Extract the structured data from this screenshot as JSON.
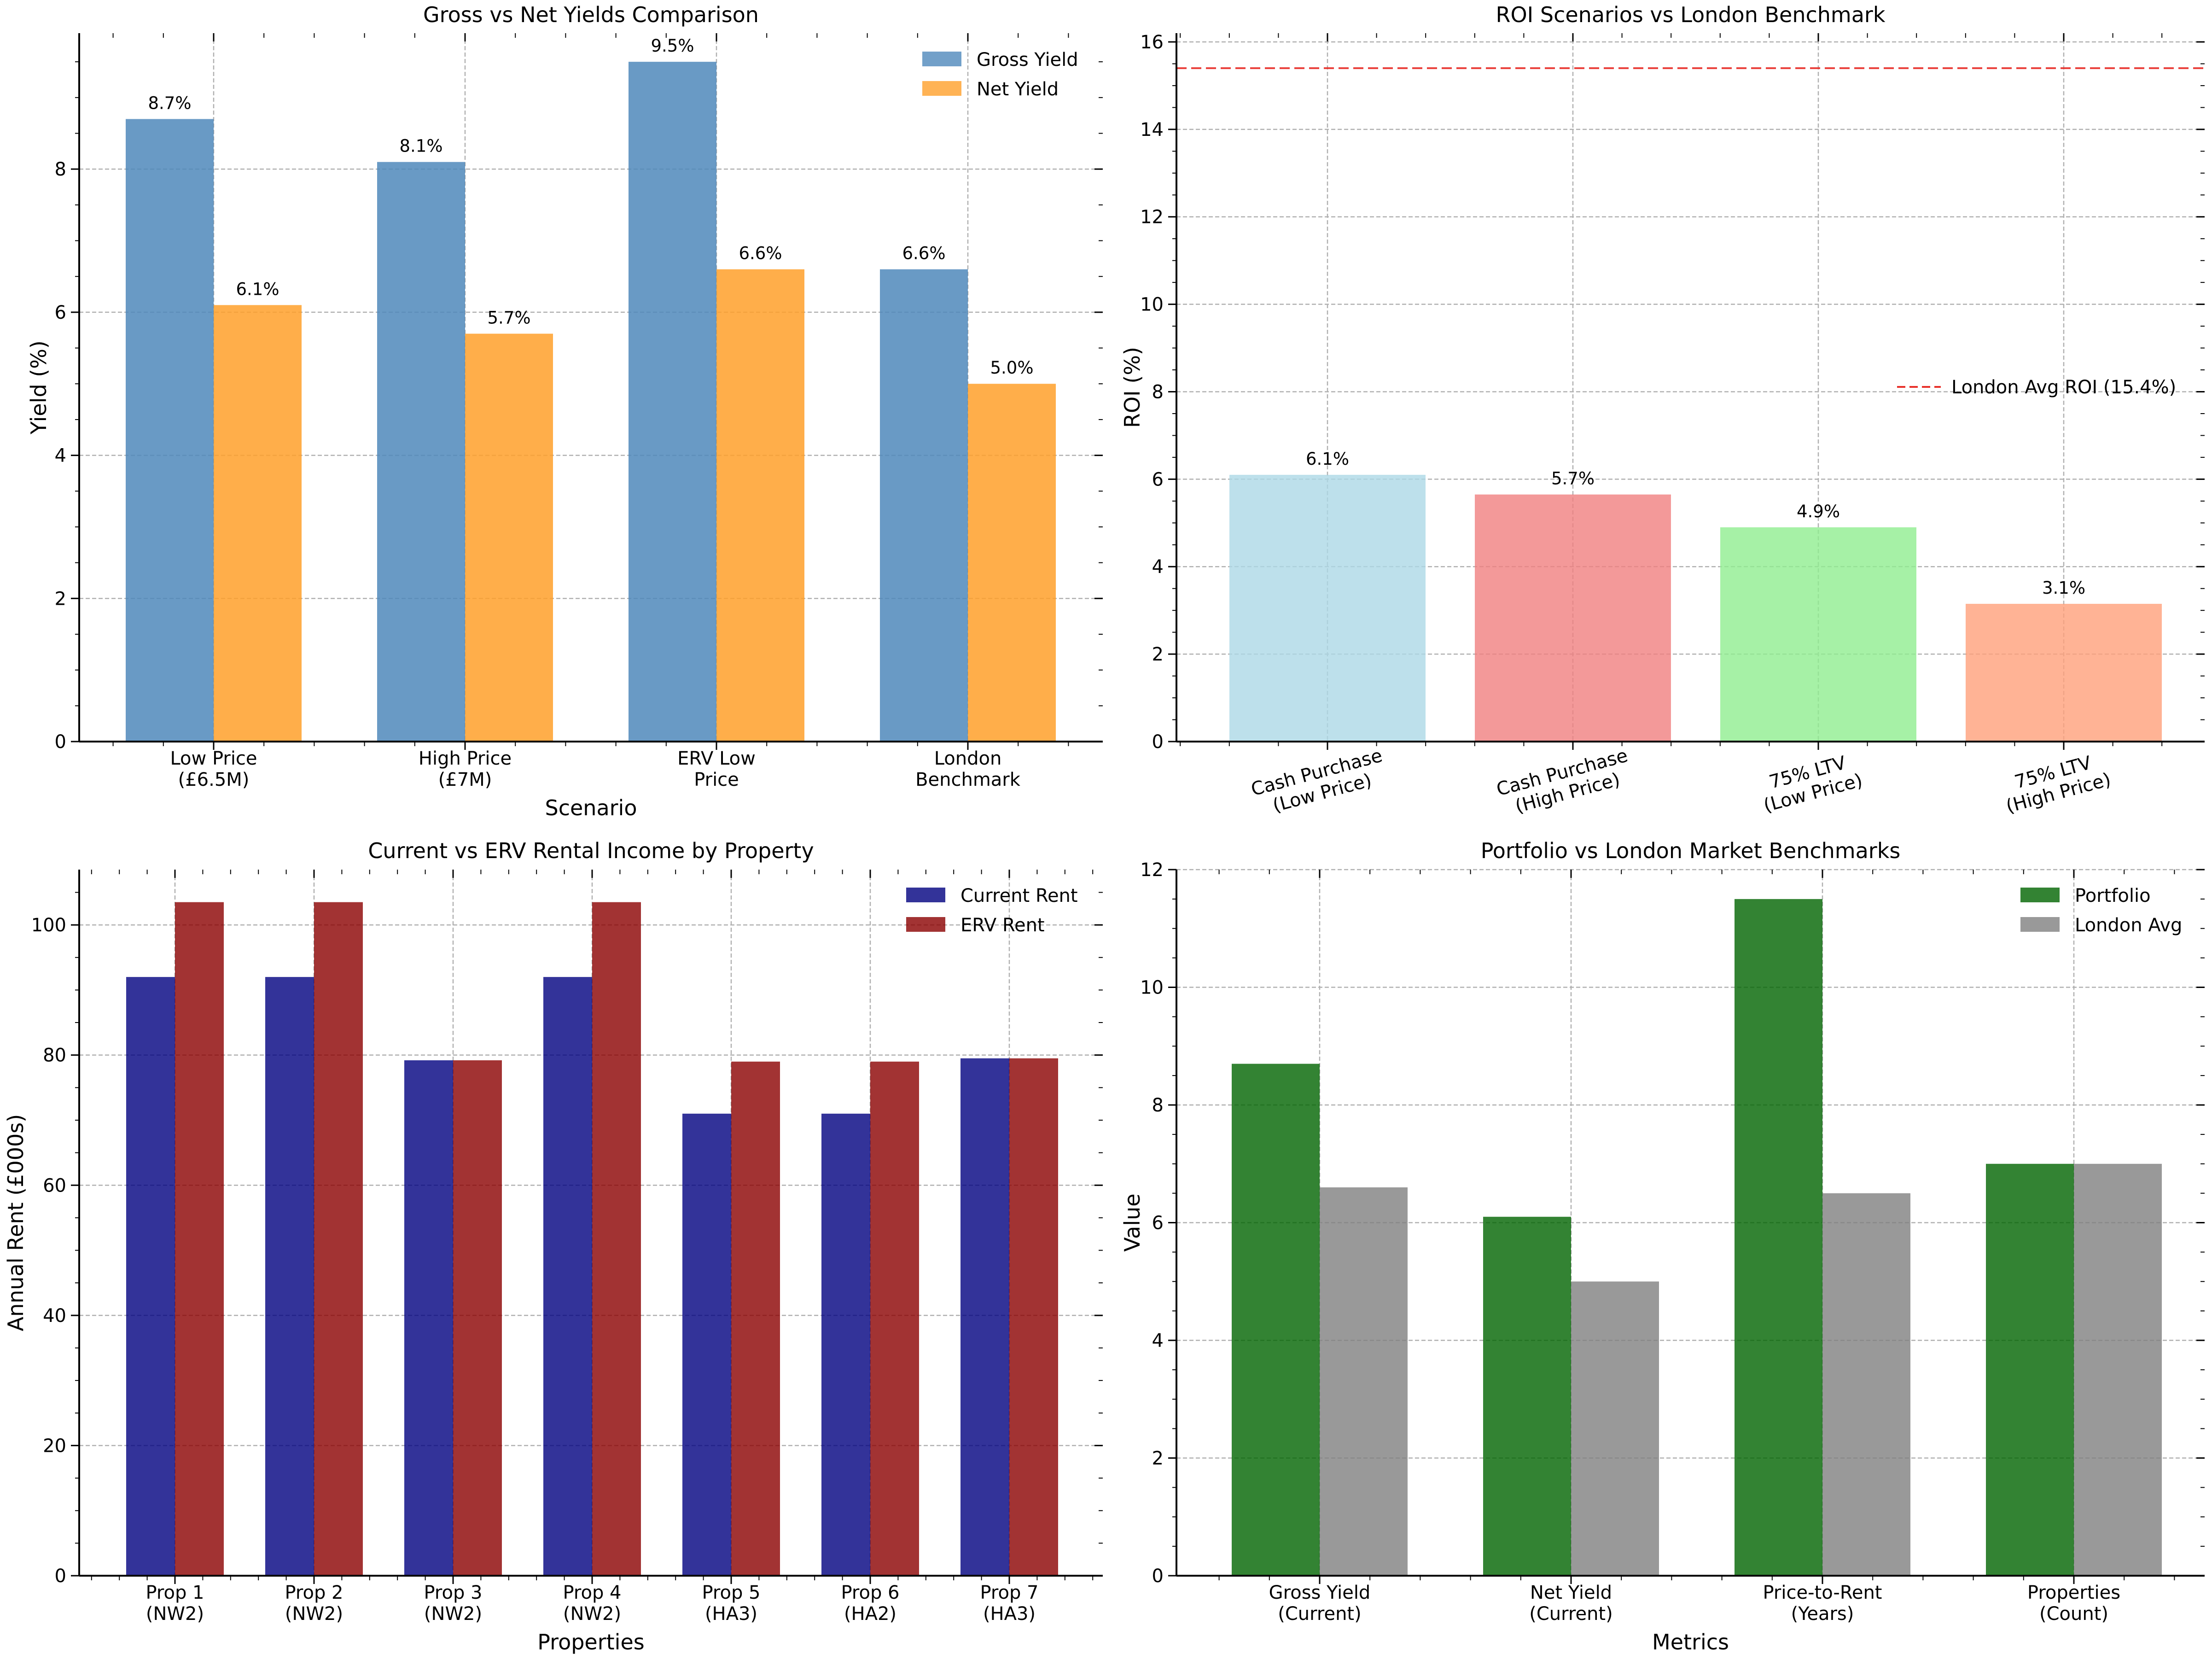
{
  "chart_data": [
    {
      "type": "bar",
      "title": "Gross vs Net Yields Comparison",
      "xlabel": "Scenario",
      "ylabel": "Yield (%)",
      "categories": [
        "Low Price\n(£6.5M)",
        "High Price\n(£7M)",
        "ERV Low\nPrice",
        "London\nBenchmark"
      ],
      "series": [
        {
          "name": "Gross Yield",
          "values": [
            8.7,
            8.1,
            9.5,
            6.6
          ],
          "color": "#4f88bb",
          "labels": [
            "8.7%",
            "8.1%",
            "9.5%",
            "6.6%"
          ]
        },
        {
          "name": "Net Yield",
          "values": [
            6.1,
            5.7,
            6.6,
            5.0
          ],
          "color": "#ffa02a",
          "labels": [
            "6.1%",
            "5.7%",
            "6.6%",
            "5.0%"
          ]
        }
      ],
      "ylim": [
        0,
        9.9
      ],
      "yticks": [
        0,
        2,
        4,
        6,
        8
      ],
      "grid": true,
      "legend": "top-right"
    },
    {
      "type": "bar",
      "title": "ROI Scenarios vs London Benchmark",
      "xlabel": "",
      "ylabel": "ROI (%)",
      "categories": [
        "Cash Purchase\n(Low Price)",
        "Cash Purchase\n(High Price)",
        "75% LTV\n(Low Price)",
        "75% LTV\n(High Price)"
      ],
      "series": [
        {
          "values": [
            6.1,
            5.65,
            4.9,
            3.15
          ],
          "colors": [
            "#add8e6",
            "#f08080",
            "#90ee90",
            "#ffa07a"
          ],
          "labels": [
            "6.1%",
            "5.7%",
            "4.9%",
            "3.1%"
          ]
        }
      ],
      "reference_line": {
        "value": 15.4,
        "label": "London Avg ROI (15.4%)",
        "color": "#e8302a"
      },
      "ylim": [
        0,
        16.2
      ],
      "yticks": [
        0,
        2,
        4,
        6,
        8,
        10,
        12,
        14,
        16
      ],
      "grid": true,
      "legend": "center-right"
    },
    {
      "type": "bar",
      "title": "Current vs ERV Rental Income by Property",
      "xlabel": "Properties",
      "ylabel": "Annual Rent (£000s)",
      "categories": [
        "Prop 1\n(NW2)",
        "Prop 2\n(NW2)",
        "Prop 3\n(NW2)",
        "Prop 4\n(NW2)",
        "Prop 5\n(HA3)",
        "Prop 6\n(HA2)",
        "Prop 7\n(HA3)"
      ],
      "series": [
        {
          "name": "Current Rent",
          "values": [
            92,
            92,
            79.2,
            92,
            71,
            71,
            79.5
          ],
          "color": "#00007f"
        },
        {
          "name": "ERV Rent",
          "values": [
            103.5,
            103.5,
            79.2,
            103.5,
            79,
            79,
            79.5
          ],
          "color": "#8b0000"
        }
      ],
      "ylim": [
        0,
        108.5
      ],
      "yticks": [
        0,
        20,
        40,
        60,
        80,
        100
      ],
      "grid": true,
      "legend": "top-right"
    },
    {
      "type": "bar",
      "title": "Portfolio vs London Market Benchmarks",
      "xlabel": "Metrics",
      "ylabel": "Value",
      "categories": [
        "Gross Yield\n(Current)",
        "Net Yield\n(Current)",
        "Price-to-Rent\n(Years)",
        "Properties\n(Count)"
      ],
      "series": [
        {
          "name": "Portfolio",
          "values": [
            8.7,
            6.1,
            11.5,
            7.0
          ],
          "color": "#006400"
        },
        {
          "name": "London Avg",
          "values": [
            6.6,
            5.0,
            6.5,
            7.0
          ],
          "color": "#808080"
        }
      ],
      "ylim": [
        0,
        12
      ],
      "yticks": [
        0,
        2,
        4,
        6,
        8,
        10,
        12
      ],
      "grid": true,
      "legend": "top-right"
    }
  ]
}
